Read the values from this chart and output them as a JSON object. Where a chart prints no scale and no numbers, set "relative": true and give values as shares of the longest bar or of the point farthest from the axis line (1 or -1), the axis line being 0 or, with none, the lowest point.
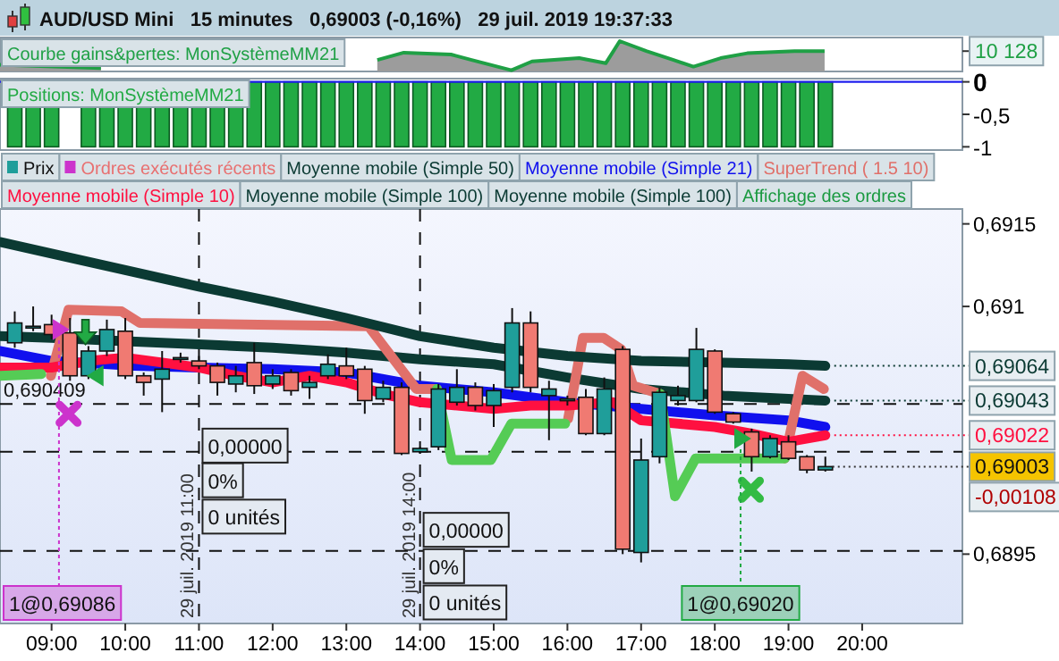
{
  "chart_data": [
    {
      "type": "area",
      "title": "AUD/USD Mini   15 minutes   0,69003 (-0,16%)   29 juil. 2019 19:37:33",
      "relative": true,
      "legend": "top left",
      "tick_labels": false,
      "xlim": [
        8.3,
        21.36
      ],
      "x": [
        8.3,
        9.67,
        9.85,
        12.87,
        13.42,
        13.78,
        14.42,
        14.7,
        15.24,
        15.52,
        16.16,
        16.52,
        16.71,
        17.07,
        17.44,
        17.71,
        18.08,
        18.44,
        19.08,
        19.49
      ],
      "series": [
        {
          "name": "Courbe gains&pertes: MonSystèmeMM21",
          "color": "#1fa045",
          "values": [
            0.22,
            0.11,
            null,
            null,
            0.38,
            0.62,
            0.56,
            0.38,
            0.04,
            0.33,
            0.44,
            0.27,
            1,
            0.67,
            0.38,
            0.16,
            0.44,
            0.6,
            0.67,
            0.67
          ]
        }
      ],
      "annotations": [
        "10 128"
      ]
    },
    {
      "type": "bar",
      "legend": "top left",
      "tick_labels": "y",
      "xlim": [
        8.3,
        21.36
      ],
      "ylim": [
        -1.05,
        0.05
      ],
      "yticks": [
        0,
        {
          "value": -0.5,
          "label": "-0,5"
        },
        -1
      ],
      "ref_lines": [
        {
          "axis": "y",
          "value": 0,
          "color": "#2020ee"
        }
      ],
      "x": [
        8.5,
        8.75,
        9,
        9.25,
        9.5,
        9.75,
        10,
        10.25,
        10.5,
        10.75,
        11,
        11.25,
        11.5,
        11.75,
        12,
        12.25,
        12.5,
        12.75,
        13,
        13.25,
        13.5,
        13.75,
        14,
        14.25,
        14.5,
        14.75,
        15,
        15.25,
        15.5,
        15.75,
        16,
        16.25,
        16.5,
        16.75,
        17,
        17.25,
        17.5,
        17.75,
        18,
        18.25,
        18.5,
        18.75,
        19,
        19.25,
        19.5
      ],
      "series": [
        {
          "name": "Positions: MonSystèmeMM21",
          "color": "#22aa44",
          "values": [
            -1,
            -1,
            -1,
            null,
            -1,
            -1,
            -1,
            -1,
            -1,
            -1,
            -1,
            -1,
            -1,
            -1,
            -1,
            -1,
            -1,
            -1,
            -1,
            -1,
            -1,
            -1,
            -1,
            -1,
            -1,
            -1,
            -1,
            -1,
            -1,
            -1,
            -1,
            -1,
            -1,
            -1,
            -1,
            -1,
            -1,
            -1,
            -1,
            -1,
            -1,
            -1,
            -1,
            -1,
            -1
          ]
        }
      ]
    },
    {
      "type": "candlestick",
      "legend": "top",
      "xlim": [
        8.3,
        21.36
      ],
      "ylim": [
        0.68908,
        0.69159
      ],
      "xticks": [
        {
          "value": 9,
          "label": "09:00"
        },
        {
          "value": 10,
          "label": "10:00"
        },
        {
          "value": 11,
          "label": "11:00"
        },
        {
          "value": 12,
          "label": "12:00"
        },
        {
          "value": 13,
          "label": "13:00"
        },
        {
          "value": 14,
          "label": "14:00"
        },
        {
          "value": 15,
          "label": "15:00"
        },
        {
          "value": 16,
          "label": "16:00"
        },
        {
          "value": 17,
          "label": "17:00"
        },
        {
          "value": 18,
          "label": "18:00"
        },
        {
          "value": 19,
          "label": "19:00"
        },
        {
          "value": 20,
          "label": "20:00"
        }
      ],
      "yticks": [
        {
          "value": 0.6915,
          "label": "0,6915"
        },
        {
          "value": 0.691,
          "label": "0,691"
        },
        {
          "value": 0.6895,
          "label": "0,6895"
        }
      ],
      "series": [
        {
          "type": "candlestick",
          "name": "Prix",
          "x": [
            8.5,
            8.75,
            9,
            9.25,
            9.5,
            9.75,
            10,
            10.25,
            10.5,
            10.75,
            11,
            11.25,
            11.5,
            11.75,
            12,
            12.25,
            12.5,
            12.75,
            13,
            13.25,
            13.5,
            13.75,
            14,
            14.25,
            14.5,
            14.75,
            15,
            15.25,
            15.5,
            15.75,
            16,
            16.25,
            16.5,
            16.75,
            17,
            17.25,
            17.5,
            17.75,
            18,
            18.25,
            18.5,
            18.75,
            19,
            19.25,
            19.5
          ],
          "ohlc": [
            [
              0.69078,
              0.69097,
              0.69075,
              0.6909
            ],
            [
              0.69088,
              0.691,
              0.69085,
              0.69088
            ],
            [
              0.69089,
              0.69095,
              0.6908,
              0.69083
            ],
            [
              0.69084,
              0.69093,
              0.69055,
              0.69058
            ],
            [
              0.69058,
              0.69076,
              0.69056,
              0.69073
            ],
            [
              0.69073,
              0.69092,
              0.6907,
              0.69086
            ],
            [
              0.69085,
              0.69093,
              0.69056,
              0.69058
            ],
            [
              0.69058,
              0.6906,
              0.69046,
              0.69054
            ],
            [
              0.69056,
              0.69073,
              0.69036,
              0.69062
            ],
            [
              0.69069,
              0.69072,
              0.69066,
              0.69069
            ],
            [
              0.69067,
              0.6907,
              0.69062,
              0.69064
            ],
            [
              0.69064,
              0.69066,
              0.69046,
              0.69054
            ],
            [
              0.69053,
              0.69064,
              0.69048,
              0.69058
            ],
            [
              0.69066,
              0.69078,
              0.69047,
              0.69052
            ],
            [
              0.69053,
              0.69062,
              0.6905,
              0.69058
            ],
            [
              0.6906,
              0.69062,
              0.69046,
              0.69049
            ],
            [
              0.69051,
              0.69058,
              0.69044,
              0.69054
            ],
            [
              0.69058,
              0.69071,
              0.69056,
              0.69065
            ],
            [
              0.69064,
              0.69075,
              0.69056,
              0.69058
            ],
            [
              0.69062,
              0.69064,
              0.69035,
              0.69043
            ],
            [
              0.69044,
              0.69055,
              0.69042,
              0.69051
            ],
            [
              0.69051,
              0.69054,
              0.6901,
              0.69011
            ],
            [
              0.69012,
              0.69015,
              0.69011,
              0.69014
            ],
            [
              0.69015,
              0.69053,
              0.69013,
              0.6905
            ],
            [
              0.69042,
              0.69062,
              0.6904,
              0.69051
            ],
            [
              0.69051,
              0.69054,
              0.69037,
              0.6904
            ],
            [
              0.6904,
              0.69053,
              0.69027,
              0.69049
            ],
            [
              0.69051,
              0.69099,
              0.69048,
              0.6909
            ],
            [
              0.6909,
              0.69097,
              0.69048,
              0.69051
            ],
            [
              0.69046,
              0.69055,
              0.69019,
              0.6905
            ],
            [
              0.69043,
              0.69046,
              0.6904,
              0.69044
            ],
            [
              0.69045,
              0.6905,
              0.69022,
              0.69023
            ],
            [
              0.69023,
              0.69057,
              0.69022,
              0.6905
            ],
            [
              0.69074,
              0.69076,
              0.6895,
              0.68953
            ],
            [
              0.68951,
              0.6902,
              0.68945,
              0.69007
            ],
            [
              0.69009,
              0.69051,
              0.69005,
              0.69048
            ],
            [
              0.69043,
              0.69052,
              0.6904,
              0.69046
            ],
            [
              0.69043,
              0.69087,
              0.69042,
              0.69074
            ],
            [
              0.69073,
              0.69074,
              0.69035,
              0.69036
            ],
            [
              0.69035,
              0.69036,
              0.69029,
              0.6903
            ],
            [
              0.69024,
              0.69026,
              0.69,
              0.69009
            ],
            [
              0.69009,
              0.69022,
              0.69008,
              0.6902
            ],
            [
              0.69018,
              0.69022,
              0.69007,
              0.69008
            ],
            [
              0.69009,
              0.6901,
              0.68999,
              0.69001
            ],
            [
              0.69001,
              0.69009,
              0.69,
              0.69003
            ]
          ],
          "colors": [
            "#1f9e9a",
            "#1f9e9a",
            "#f07a72",
            "#f07a72",
            "#1f9e9a",
            "#1f9e9a",
            "#f07a72",
            "#f07a72",
            "#1f9e9a",
            "#1f9e9a",
            "#f07a72",
            "#f07a72",
            "#1f9e9a",
            "#f07a72",
            "#1f9e9a",
            "#f07a72",
            "#1f9e9a",
            "#1f9e9a",
            "#f07a72",
            "#f07a72",
            "#1f9e9a",
            "#f07a72",
            "#1f9e9a",
            "#1f9e9a",
            "#1f9e9a",
            "#f07a72",
            "#1f9e9a",
            "#1f9e9a",
            "#f07a72",
            "#1f9e9a",
            "#1f9e9a",
            "#f07a72",
            "#1f9e9a",
            "#f07a72",
            "#1f9e9a",
            "#1f9e9a",
            "#1f9e9a",
            "#1f9e9a",
            "#f07a72",
            "#f07a72",
            "#f07a72",
            "#1f9e9a",
            "#f07a72",
            "#f07a72",
            "#1f9e9a"
          ]
        },
        {
          "type": "scatter",
          "name": "Ordres exécutés récents",
          "color": "#e87070",
          "marker": "cross",
          "x": [
            9.23,
            18.49
          ],
          "values": [
            0.69035,
            0.68989
          ],
          "colors": [
            "#cc33cc",
            "#33bb44"
          ]
        },
        {
          "type": "line",
          "name": "Moyenne mobile (Simple 50)",
          "color": "#0b3a33",
          "x": [
            8.3,
            9,
            10,
            11,
            12,
            13,
            14,
            15,
            16,
            17,
            18.12,
            19,
            19.5
          ],
          "values": [
            0.69082,
            0.69081,
            0.69079,
            0.69077,
            0.69075,
            0.69072,
            0.69068,
            0.69065,
            0.69057,
            0.6905,
            0.69046,
            0.69044,
            0.69043
          ]
        },
        {
          "type": "line",
          "name": "Moyenne mobile (Simple 21)",
          "color": "#1010ee",
          "x": [
            8.3,
            9,
            10.12,
            11,
            12,
            13,
            14,
            15,
            16,
            17,
            18,
            19,
            19.5
          ],
          "values": [
            0.69073,
            0.69067,
            0.69064,
            0.69063,
            0.69062,
            0.6906,
            0.69052,
            0.69048,
            0.69042,
            0.69038,
            0.69034,
            0.69031,
            0.69027
          ]
        },
        {
          "type": "line",
          "name": "SuperTrend ( 1.5 10)",
          "color": "#e0706a",
          "x": [
            8.99,
            9.23,
            9.95,
            10.2,
            13.3,
            13.95,
            14.23,
            15,
            16.01,
            16.21,
            16.49,
            16.73,
            16.89,
            17.26,
            18,
            18.95,
            19.19,
            19.48
          ],
          "values": [
            0.69058,
            0.69098,
            0.69097,
            0.6909,
            0.69088,
            0.6905,
            0.6905,
            null,
            0.69032,
            0.69081,
            0.69081,
            0.69074,
            0.69052,
            0.69047,
            null,
            0.69008,
            0.69058,
            0.6905
          ]
        },
        {
          "type": "line",
          "name": "Moyenne mobile (Simple 10)",
          "color": "#ff1040",
          "x": [
            8.3,
            9,
            9.5,
            10,
            10.5,
            11,
            11.5,
            12,
            12.5,
            13,
            13.5,
            14,
            15,
            15.5,
            16,
            16.62,
            17,
            17.5,
            18,
            18.5,
            19,
            19.5
          ],
          "values": [
            0.69063,
            0.69063,
            0.69067,
            0.69069,
            0.69066,
            0.69063,
            0.69058,
            0.69054,
            0.69058,
            0.69054,
            0.69047,
            0.69042,
            0.69038,
            0.6904,
            0.6904,
            0.69042,
            0.69031,
            0.69029,
            0.69027,
            0.69023,
            0.69018,
            0.69022
          ]
        },
        {
          "type": "line",
          "name": "Moyenne mobile (Simple 100)",
          "color": "#0b3a33",
          "x": [
            8.3,
            9,
            10,
            11,
            12,
            13,
            14,
            15,
            16,
            17,
            18.12,
            19,
            19.5
          ],
          "values": [
            0.69139,
            0.69132,
            0.69122,
            0.69112,
            0.69103,
            0.69093,
            0.69082,
            0.69075,
            0.6907,
            0.69067,
            0.69066,
            0.69065,
            0.69064
          ]
        },
        {
          "type": "line",
          "color": "#55cc55",
          "x": [
            8.3,
            8.86,
            12,
            14.23,
            14.43,
            14.96,
            15.24,
            15.97,
            16.5,
            17.26,
            17.46,
            17.74,
            18.95
          ],
          "values": [
            0.69058,
            0.69059,
            null,
            0.6905,
            0.69007,
            0.69007,
            0.69029,
            0.69029,
            null,
            0.69047,
            0.68985,
            0.69008,
            0.69008
          ]
        },
        {
          "type": "scatter",
          "marker": "triangle",
          "x": [
            9.1,
            18.35
          ],
          "values": [
            0.69086,
            0.6902
          ],
          "colors": [
            "#cc33cc",
            "#22aa44"
          ]
        },
        {
          "type": "scatter",
          "color": "#22aa44",
          "marker": "triangle-left",
          "x": [
            9.62
          ],
          "values": [
            0.69058
          ]
        }
      ],
      "ref_lines": [
        {
          "axis": "y",
          "value": 0.690409,
          "label": "0,690409",
          "line_style": "dashed"
        },
        {
          "axis": "y",
          "value": 0.69012,
          "line_style": "dashed"
        },
        {
          "axis": "y",
          "value": 0.68952,
          "line_style": "dashed"
        },
        {
          "axis": "x",
          "value": 11,
          "label": "29 juil. 2019 11:00",
          "line_style": "dashed"
        },
        {
          "axis": "x",
          "value": 14,
          "label": "29 juil. 2019 14:00",
          "line_style": "dashed"
        }
      ],
      "annotations": [
        "Moyenne mobile (Simple 100)",
        "Affichage des ordres",
        "-0,00108",
        {
          "text": "0,00000",
          "x": 11,
          "y": 0.69026
        },
        {
          "text": "0%",
          "x": 11,
          "y": 0.69005
        },
        {
          "text": "0 unités",
          "x": 11,
          "y": 0.68983
        },
        {
          "text": "0,00000",
          "x": 14,
          "y": 0.68975
        },
        {
          "text": "0%",
          "x": 14,
          "y": 0.68953
        },
        {
          "text": "0 unités",
          "x": 14,
          "y": 0.68931
        },
        {
          "text": "1@0,69086",
          "x": 9.1,
          "y": 0.69086
        },
        {
          "text": "1@0,69020",
          "x": 18.35,
          "y": 0.6902
        },
        {
          "text": "0,69064",
          "x": 19.5,
          "y": 0.69064
        },
        {
          "text": "0,69043",
          "x": 19.5,
          "y": 0.69043
        },
        {
          "text": "0,69022",
          "x": 19.5,
          "y": 0.69022
        },
        {
          "text": "0,69003",
          "x": 19.5,
          "y": 0.69003
        }
      ]
    }
  ]
}
